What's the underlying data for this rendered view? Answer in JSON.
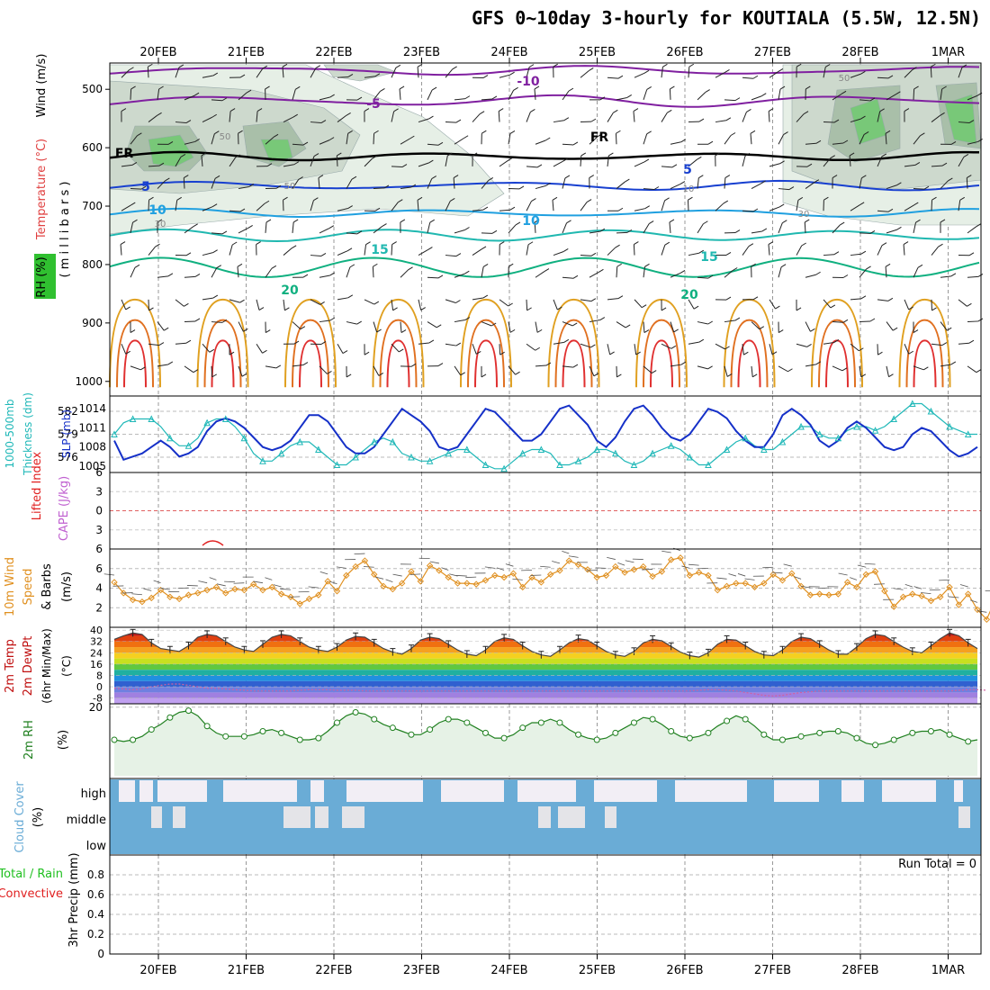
{
  "title": "GFS 0~10day 3-hourly for KOUTIALA (5.5W, 12.5N)",
  "dates": [
    "20FEB",
    "21FEB",
    "22FEB",
    "23FEB",
    "24FEB",
    "25FEB",
    "26FEB",
    "27FEB",
    "28FEB",
    "1MAR"
  ],
  "run_total": "Run Total = 0",
  "panels": {
    "upper": {
      "labels": [
        "Wind (m/s)",
        "Temperature (°C)",
        "RH (%)",
        "( m i l l i b a r s )"
      ],
      "yticks": [
        "500",
        "600",
        "700",
        "800",
        "900",
        "1000"
      ],
      "contour_labels": [
        "-10",
        "-5",
        "FR",
        "FR",
        "5",
        "5",
        "10",
        "10",
        "15",
        "15",
        "20",
        "20",
        "50",
        "50",
        "50",
        "30",
        "30",
        "10"
      ]
    },
    "thick": {
      "labels": [
        "1000-500mb",
        "Thickness (dm)",
        "SLP (mb)"
      ],
      "left_ticks": [
        "582",
        "579",
        "576"
      ],
      "right_ticks": [
        "1014",
        "1011",
        "1008",
        "1005"
      ]
    },
    "li": {
      "labels": [
        "Lifted Index",
        "CAPE (J/kg)"
      ],
      "yticks": [
        "-6",
        "-3",
        "0",
        "3",
        "6"
      ]
    },
    "wind10": {
      "labels": [
        "10m Wind",
        "Speed",
        "& Barbs",
        "(m/s)"
      ],
      "yticks": [
        "6",
        "4",
        "2"
      ]
    },
    "temp": {
      "labels": [
        "2m Temp",
        "2m DewPt",
        "(6hr Min/Max)",
        "(°C)"
      ],
      "yticks": [
        "40",
        "32",
        "24",
        "16",
        "8",
        "0",
        "-8"
      ]
    },
    "rh": {
      "labels": [
        "2m RH",
        "(%)"
      ],
      "yticks": [
        "20"
      ]
    },
    "cloud": {
      "labels": [
        "Cloud Cover",
        "(%)"
      ],
      "yticks": [
        "high",
        "middle",
        "low"
      ]
    },
    "precip": {
      "labels": [
        "Total / Rain",
        "Convective",
        "3hr Precip (mm)"
      ],
      "yticks": [
        "0.8",
        "0.6",
        "0.4",
        "0.2",
        "0"
      ]
    }
  },
  "colors": {
    "slp": "#1530c8",
    "thickness": "#20b8b8",
    "li": "#e02020",
    "cape": "#c060d0",
    "wind": "#e09020",
    "temp_hi": "#c01010",
    "rh": "#208020",
    "cloud": "#6aacd6",
    "precip_total": "#20c020",
    "precip_conv": "#e02020"
  },
  "chart_data": {
    "type": "line",
    "x": [
      "20FEB",
      "21FEB",
      "22FEB",
      "23FEB",
      "24FEB",
      "25FEB",
      "26FEB",
      "27FEB",
      "28FEB",
      "1MAR"
    ],
    "slp_mb": [
      1009,
      1006,
      1006.5,
      1007,
      1008,
      1009,
      1008,
      1006.5,
      1007,
      1008,
      1010.5,
      1012,
      1012.5,
      1012,
      1011,
      1009.5,
      1008,
      1007.5,
      1008,
      1009,
      1011,
      1013,
      1013,
      1012,
      1010,
      1008,
      1007,
      1007,
      1008,
      1010,
      1012,
      1014,
      1013,
      1012,
      1010.5,
      1008,
      1007.5,
      1008,
      1010,
      1012,
      1014,
      1013.5,
      1012,
      1010.5,
      1009,
      1009,
      1010,
      1012,
      1014,
      1014.5,
      1013,
      1011.5,
      1009,
      1008,
      1009.5,
      1012,
      1014,
      1014.5,
      1013,
      1011,
      1009.5,
      1009,
      1010,
      1012,
      1014,
      1013.5,
      1012.5,
      1010.5,
      1009,
      1008,
      1008,
      1010,
      1013,
      1014,
      1013,
      1011.5,
      1009,
      1008,
      1009,
      1011,
      1012,
      1011,
      1009.5,
      1008,
      1007.5,
      1008,
      1010,
      1011,
      1010.5,
      1009,
      1007.5,
      1006.5,
      1007,
      1008
    ],
    "thickness_dm": [
      579,
      580.5,
      581,
      581,
      581,
      580,
      578.5,
      577.5,
      577.5,
      578.5,
      580.5,
      581,
      581,
      580,
      578.5,
      576.5,
      575.5,
      575.5,
      576.5,
      577.5,
      578,
      578,
      577,
      576,
      575,
      575,
      576,
      577,
      578,
      578.5,
      578,
      576.5,
      576,
      575.5,
      575.5,
      576,
      576.5,
      577,
      577,
      576,
      575,
      574.5,
      574.5,
      575.5,
      576.5,
      577,
      577,
      576.5,
      575,
      575,
      575.5,
      576,
      577,
      577,
      576.5,
      575.5,
      575,
      575.5,
      576.5,
      577,
      577.5,
      577,
      576,
      575,
      575,
      576,
      577,
      578,
      578.5,
      577.5,
      577,
      577,
      578,
      579,
      580,
      580,
      579,
      578.5,
      578.5,
      579.5,
      580,
      580,
      579.5,
      580,
      581,
      582,
      583,
      583,
      582,
      581,
      580,
      579.5,
      579,
      579
    ],
    "wind10_ms": [
      4.6,
      3.5,
      2.8,
      2.6,
      3,
      3.8,
      3.1,
      2.9,
      3.3,
      3.5,
      3.8,
      4.1,
      3.5,
      3.9,
      3.8,
      4.4,
      3.8,
      4.1,
      3.4,
      3.1,
      2.4,
      2.9,
      3.3,
      4.7,
      3.7,
      5.3,
      6.2,
      6.8,
      5.4,
      4.2,
      3.9,
      4.5,
      5.7,
      4.7,
      6.3,
      5.8,
      5.1,
      4.5,
      4.5,
      4.4,
      4.8,
      5.3,
      5.1,
      5.5,
      4.1,
      5.1,
      4.6,
      5.4,
      5.8,
      6.8,
      6.4,
      5.9,
      5.1,
      5.3,
      6.2,
      5.6,
      5.9,
      6.2,
      5.2,
      5.7,
      6.9,
      7.1,
      5.3,
      5.6,
      5.3,
      3.8,
      4.2,
      4.5,
      4.5,
      4.1,
      4.5,
      5.4,
      4.8,
      5.5,
      4.2,
      3.3,
      3.4,
      3.3,
      3.4,
      4.6,
      4.1,
      5.4,
      5.7,
      3.7,
      2.1,
      3.1,
      3.4,
      3.2,
      2.7,
      3.1,
      4.1,
      2.3,
      3.4,
      1.8,
      0.8,
      3
    ],
    "temp_c": [
      33.5,
      36,
      38,
      37,
      31,
      27,
      26,
      25,
      29,
      35,
      37,
      36,
      32,
      28,
      26,
      25,
      30,
      35,
      37,
      36,
      32,
      28,
      26,
      25,
      28,
      33,
      35.5,
      35,
      31,
      27,
      24.5,
      23,
      27,
      33,
      35,
      34,
      30,
      26,
      23,
      22,
      26,
      32,
      34.5,
      33.5,
      29,
      25,
      22.5,
      21.5,
      26,
      31,
      34,
      33,
      29,
      25,
      22.5,
      21.5,
      25,
      31,
      33.5,
      32.5,
      28.5,
      24.5,
      22,
      21,
      24,
      30,
      33.5,
      33,
      29,
      25,
      22.5,
      22,
      26,
      32,
      35,
      34,
      30,
      26,
      23,
      23,
      28,
      34,
      37,
      36,
      32,
      28,
      25,
      24,
      29,
      34,
      38,
      36,
      31,
      27
    ],
    "dewpt_c": [
      -1,
      -1.5,
      -2,
      -1.5,
      0,
      1,
      2,
      2,
      1,
      0,
      -1,
      -1,
      -1.5,
      -2,
      -2.5,
      -3,
      -3,
      -3,
      -3,
      -3,
      -2.5,
      -2,
      -2,
      -2,
      -2.5,
      -2.5,
      -2.5,
      -3,
      -3,
      -3,
      -3,
      -3,
      -3,
      -3,
      -3,
      -3,
      -3,
      -3,
      -3,
      -3,
      -3,
      -3,
      -3,
      -3,
      -3,
      -3,
      -3,
      -3,
      -3,
      -3,
      -3,
      -3,
      -3,
      -3,
      -3,
      -3,
      -3,
      -3,
      -3,
      -3,
      -3,
      -3,
      -3,
      -2.5,
      -2,
      -2,
      -2.5,
      -3,
      -4,
      -5,
      -6,
      -6.5,
      -6,
      -5,
      -4,
      -3.5,
      -3,
      -3,
      -3,
      -3,
      -3,
      -3,
      -3,
      -3,
      -3,
      -3,
      -3,
      -3,
      -3,
      -3,
      -3,
      -2.5,
      -2,
      -2,
      -2.5
    ],
    "rh_pct": [
      10.5,
      10,
      10.5,
      11.5,
      13.5,
      15,
      17,
      18.5,
      19,
      17.5,
      14.5,
      12.5,
      11.5,
      11.5,
      11.5,
      12,
      13,
      13.5,
      12.5,
      11.5,
      10.5,
      10.5,
      11,
      13,
      15.5,
      17.5,
      18.5,
      18,
      16.5,
      15,
      14,
      13,
      12,
      12,
      13.5,
      15.5,
      16.5,
      16.5,
      15.5,
      14,
      12.5,
      11,
      11,
      12,
      14,
      15.5,
      15.5,
      16.5,
      15.5,
      13.5,
      12,
      11,
      10.5,
      11,
      12.5,
      14,
      15.5,
      17,
      16.5,
      15,
      13,
      11.5,
      11,
      11.5,
      12.5,
      14.5,
      16,
      17.5,
      16.5,
      14.5,
      12,
      10.5,
      10.5,
      11,
      11.5,
      12,
      12.5,
      13,
      13,
      12.5,
      11,
      9.5,
      9,
      9.5,
      10.5,
      11.5,
      12.5,
      13,
      13,
      13.5,
      12,
      11,
      10,
      10.5
    ],
    "precip_mm": 0,
    "slp_range": [
      1004,
      1016
    ],
    "thick_range": [
      574,
      584
    ],
    "wind_range": [
      0,
      8
    ],
    "temp_range": [
      -12,
      42
    ],
    "rh_range": [
      0,
      21
    ],
    "precip_range": [
      0,
      1
    ]
  }
}
